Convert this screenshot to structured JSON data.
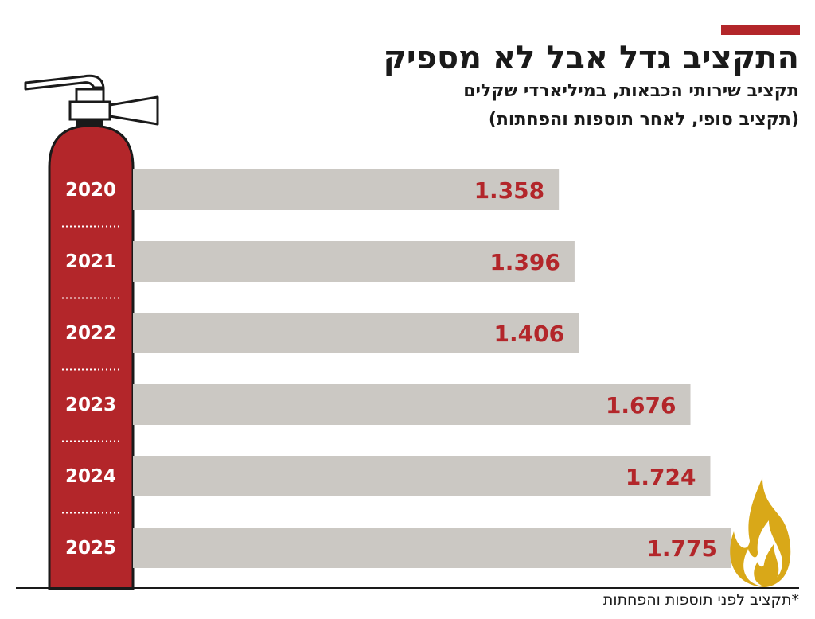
{
  "title": "התקציב גדל אבל לא מספיק",
  "subtitle": "תקציב שירותי הכבאות, במיליארדי שקלים",
  "subtitle2": "(תקציב סופי, לאחר תוספות והפחתות)",
  "footnote": "*תקציב לפני תוספות והפחתות",
  "colors": {
    "accent": "#b3262a",
    "bar": "#cbc8c3",
    "value_text": "#b3262a",
    "flame": "#d9a818"
  },
  "chart_data": {
    "type": "bar",
    "orientation": "horizontal",
    "categories": [
      "2020",
      "2021",
      "2022",
      "2023",
      "2024",
      "2025"
    ],
    "values": [
      1.358,
      1.396,
      1.406,
      1.676,
      1.724,
      1.775
    ],
    "value_labels": [
      "1.358",
      "1.396",
      "1.406",
      "1.676",
      "1.724",
      "1.775"
    ],
    "title": "התקציב גדל אבל לא מספיק",
    "xlabel": "",
    "ylabel": "",
    "grid": false
  }
}
